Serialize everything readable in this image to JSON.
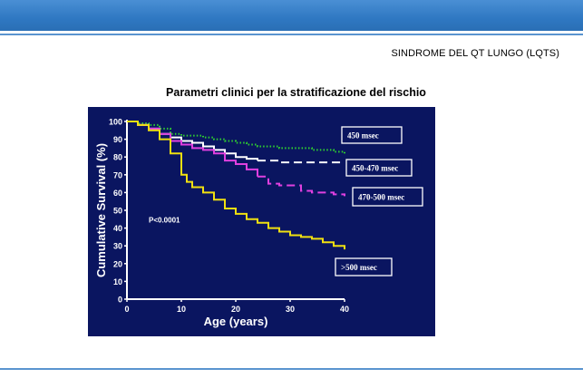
{
  "header": {
    "text": "SINDROME DEL QT LUNGO (LQTS)"
  },
  "slide": {
    "title": "Parametri clinici per la stratificazione del rischio"
  },
  "chart_data": {
    "type": "line",
    "title": "",
    "xlabel": "Age (years)",
    "ylabel": "Cumulative Survival (%)",
    "xlim": [
      0,
      40
    ],
    "ylim": [
      0,
      100
    ],
    "xticks": [
      0,
      10,
      20,
      30,
      40
    ],
    "yticks": [
      0,
      10,
      20,
      30,
      40,
      50,
      60,
      70,
      80,
      90,
      100
    ],
    "annotation": "P<0.0001",
    "grid": false,
    "series": [
      {
        "name": "450 msec",
        "color": "#2fd12f",
        "dash": "dotted",
        "x": [
          0,
          2,
          4,
          6,
          8,
          10,
          12,
          14,
          16,
          18,
          20,
          22,
          24,
          26,
          28,
          30,
          32,
          34,
          36,
          38,
          40
        ],
        "y": [
          100,
          99,
          98,
          96,
          93,
          92,
          92,
          91,
          90,
          89,
          88,
          87,
          86,
          86,
          85,
          85,
          85,
          84,
          84,
          83,
          81
        ]
      },
      {
        "name": "450-470 msec",
        "color": "#ffffff",
        "dash": "solid-then-dashed",
        "x": [
          0,
          2,
          4,
          6,
          8,
          10,
          12,
          14,
          16,
          18,
          20,
          22,
          24,
          26,
          28,
          30,
          32,
          34,
          36,
          38,
          40
        ],
        "y": [
          100,
          98,
          96,
          93,
          91,
          89,
          88,
          86,
          84,
          82,
          80,
          79,
          78,
          78,
          77,
          77,
          77,
          77,
          77,
          77,
          77
        ]
      },
      {
        "name": "470-500 msec",
        "color": "#e040e0",
        "dash": "solid-then-dashed",
        "x": [
          0,
          2,
          4,
          6,
          8,
          10,
          12,
          14,
          16,
          18,
          20,
          22,
          24,
          26,
          28,
          30,
          32,
          34,
          36,
          38,
          40
        ],
        "y": [
          100,
          98,
          96,
          93,
          89,
          87,
          85,
          84,
          82,
          78,
          76,
          73,
          69,
          65,
          64,
          64,
          61,
          60,
          60,
          59,
          58
        ]
      },
      {
        "name": ">500 msec",
        "color": "#f0e010",
        "dash": "solid",
        "x": [
          0,
          2,
          4,
          6,
          8,
          10,
          11,
          12,
          14,
          16,
          18,
          20,
          22,
          24,
          26,
          28,
          30,
          32,
          34,
          36,
          38,
          40
        ],
        "y": [
          100,
          98,
          95,
          90,
          82,
          70,
          66,
          63,
          60,
          56,
          51,
          48,
          45,
          43,
          40,
          38,
          36,
          35,
          34,
          32,
          30,
          28
        ]
      }
    ],
    "legend_boxes": [
      {
        "label": "450 msec"
      },
      {
        "label": "450-470 msec"
      },
      {
        "label": "470-500 msec"
      },
      {
        "label": ">500 msec"
      }
    ]
  }
}
